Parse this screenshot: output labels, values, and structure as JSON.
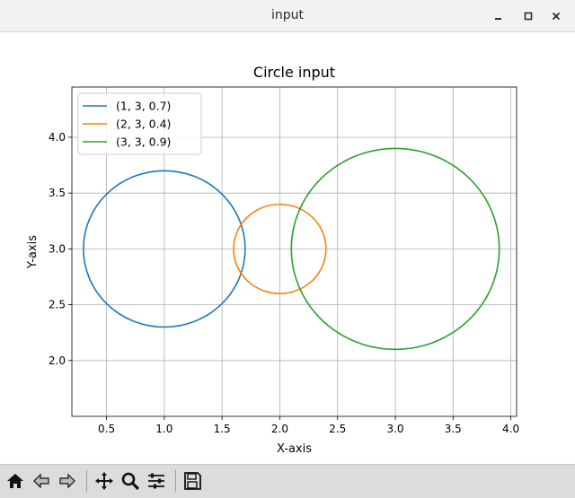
{
  "window": {
    "title": "input"
  },
  "toolbar": {
    "buttons": [
      {
        "name": "home-icon",
        "label": "Home"
      },
      {
        "name": "back-icon",
        "label": "Back"
      },
      {
        "name": "forward-icon",
        "label": "Forward"
      },
      {
        "name": "pan-icon",
        "label": "Pan"
      },
      {
        "name": "zoom-icon",
        "label": "Zoom"
      },
      {
        "name": "configure-subplots-icon",
        "label": "Configure subplots"
      },
      {
        "name": "save-icon",
        "label": "Save"
      }
    ]
  },
  "chart_data": {
    "type": "line",
    "title": "Circle input",
    "xlabel": "X-axis",
    "ylabel": "Y-axis",
    "xlim": [
      0.2,
      4.05
    ],
    "ylim": [
      1.5,
      4.45
    ],
    "xticks": [
      "0.5",
      "1.0",
      "1.5",
      "2.0",
      "2.5",
      "3.0",
      "3.5",
      "4.0"
    ],
    "yticks": [
      "2.0",
      "2.5",
      "3.0",
      "3.5",
      "4.0"
    ],
    "grid": true,
    "legend_position": "top-left",
    "series": [
      {
        "name": "(1, 3, 0.7)",
        "center_x": 1,
        "center_y": 3,
        "radius": 0.7,
        "color": "#1f77b4"
      },
      {
        "name": "(2, 3, 0.4)",
        "center_x": 2,
        "center_y": 3,
        "radius": 0.4,
        "color": "#ff7f0e"
      },
      {
        "name": "(3, 3, 0.9)",
        "center_x": 3,
        "center_y": 3,
        "radius": 0.9,
        "color": "#2ca02c"
      }
    ]
  }
}
